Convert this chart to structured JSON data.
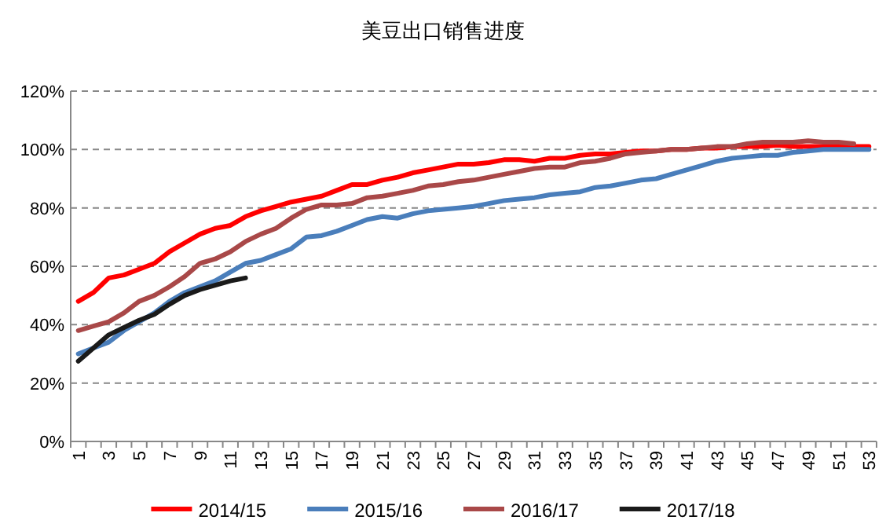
{
  "chart_data": {
    "type": "line",
    "title": "美豆出口销售进度",
    "categories": [
      "1",
      null,
      "3",
      null,
      "5",
      null,
      "7",
      null,
      "9",
      null,
      "11",
      null,
      "13",
      null,
      "15",
      null,
      "17",
      null,
      "19",
      null,
      "21",
      null,
      "23",
      null,
      "25",
      null,
      "27",
      null,
      "29",
      null,
      "31",
      null,
      "33",
      null,
      "35",
      null,
      "37",
      null,
      "39",
      null,
      "41",
      null,
      "43",
      null,
      "45",
      null,
      "47",
      null,
      "49",
      null,
      "51",
      null,
      "53"
    ],
    "ylim": [
      0,
      120
    ],
    "yticks": [
      {
        "value": 0,
        "label": "0%"
      },
      {
        "value": 20,
        "label": "20%"
      },
      {
        "value": 40,
        "label": "40%"
      },
      {
        "value": 60,
        "label": "60%"
      },
      {
        "value": 80,
        "label": "80%"
      },
      {
        "value": 100,
        "label": "100%"
      },
      {
        "value": 120,
        "label": "120%"
      }
    ],
    "grid": "y",
    "legend": "bottom",
    "line_style": "solid",
    "marker": "none",
    "series": [
      {
        "name": "2014/15",
        "color": "#ff0000",
        "values": [
          48,
          51,
          56,
          57,
          59,
          61,
          65,
          68,
          71,
          73,
          74,
          77,
          79,
          80.5,
          82,
          83,
          84,
          86,
          88,
          88,
          89.5,
          90.5,
          92,
          93,
          94,
          95,
          95,
          95.5,
          96.5,
          96.5,
          96,
          97,
          97,
          98,
          98.5,
          98.5,
          99,
          99.5,
          99.5,
          100,
          100,
          100.5,
          100.5,
          101,
          101,
          101,
          101.5,
          101,
          101,
          101,
          101,
          101,
          101
        ]
      },
      {
        "name": "2015/16",
        "color": "#4a7ebb",
        "values": [
          30,
          32,
          34,
          38,
          41,
          44,
          48,
          51,
          53,
          55,
          58,
          61,
          62,
          64,
          66,
          70,
          70.5,
          72,
          74,
          76,
          77,
          76.5,
          78,
          79,
          79.5,
          80,
          80.5,
          81.5,
          82.5,
          83,
          83.5,
          84.5,
          85,
          85.5,
          87,
          87.5,
          88.5,
          89.5,
          90,
          91.5,
          93,
          94.5,
          96,
          97,
          97.5,
          98,
          98,
          99,
          99.5,
          100,
          100,
          100,
          100
        ]
      },
      {
        "name": "2016/17",
        "color": "#a94848",
        "values": [
          38,
          39.5,
          41,
          44,
          48,
          50,
          53,
          56.5,
          61,
          62.5,
          65,
          68.5,
          71,
          73,
          76.5,
          79.5,
          81,
          81,
          81.5,
          83.5,
          84,
          85,
          86,
          87.5,
          88,
          89,
          89.5,
          90.5,
          91.5,
          92.5,
          93.5,
          94,
          94,
          95.5,
          96,
          97,
          98.5,
          99,
          99.5,
          100,
          100,
          100.5,
          101,
          101,
          102,
          102.5,
          102.5,
          102.5,
          103,
          102.5,
          102.5,
          102,
          null
        ]
      },
      {
        "name": "2017/18",
        "color": "#1a1a1a",
        "values": [
          27.5,
          32,
          36.5,
          39,
          41.5,
          43.5,
          47,
          50,
          52,
          53.5,
          55,
          56,
          null,
          null,
          null,
          null,
          null,
          null,
          null,
          null,
          null,
          null,
          null,
          null,
          null,
          null,
          null,
          null,
          null,
          null,
          null,
          null,
          null,
          null,
          null,
          null,
          null,
          null,
          null,
          null,
          null,
          null,
          null,
          null,
          null,
          null,
          null,
          null,
          null,
          null,
          null,
          null,
          null
        ]
      }
    ]
  }
}
